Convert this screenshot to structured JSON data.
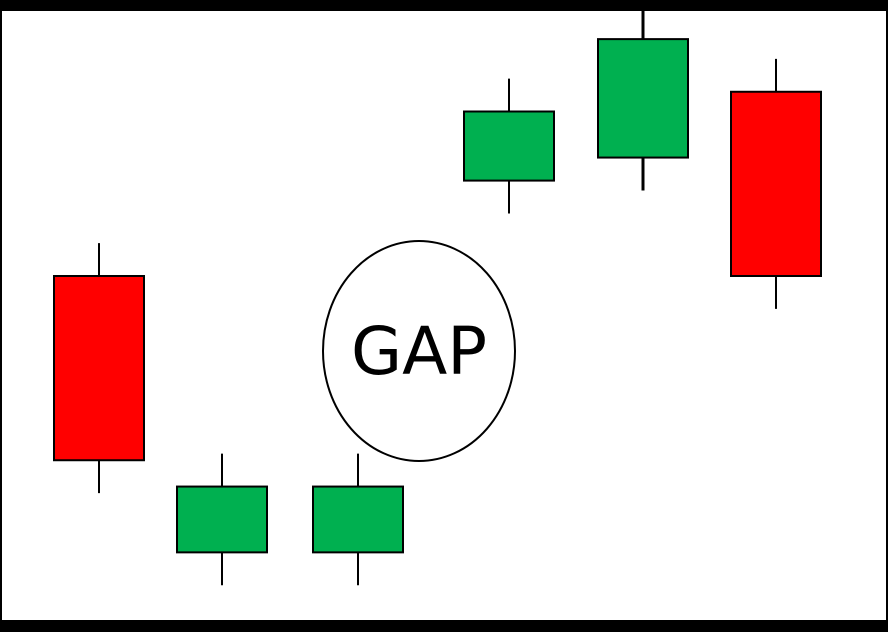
{
  "diagram": {
    "label": "GAP",
    "colors": {
      "background": "#ffffff",
      "border": "#000000",
      "bullish": "#00b050",
      "bearish": "#ff0000",
      "outline": "#000000"
    }
  },
  "chart_data": {
    "type": "candlestick",
    "candles": [
      {
        "direction": "bearish",
        "open": 100,
        "close": 44,
        "high": 110,
        "low": 34
      },
      {
        "direction": "bullish",
        "open": 16,
        "close": 36,
        "high": 46,
        "low": 6
      },
      {
        "direction": "bullish",
        "open": 16,
        "close": 36,
        "high": 46,
        "low": 6
      },
      {
        "direction": "bullish",
        "open": 129,
        "close": 150,
        "high": 160,
        "low": 119
      },
      {
        "direction": "bullish",
        "open": 136,
        "close": 172,
        "high": 182,
        "low": 126
      },
      {
        "direction": "bearish",
        "open": 156,
        "close": 100,
        "high": 166,
        "low": 90
      }
    ],
    "gap_after_candle": 3
  }
}
